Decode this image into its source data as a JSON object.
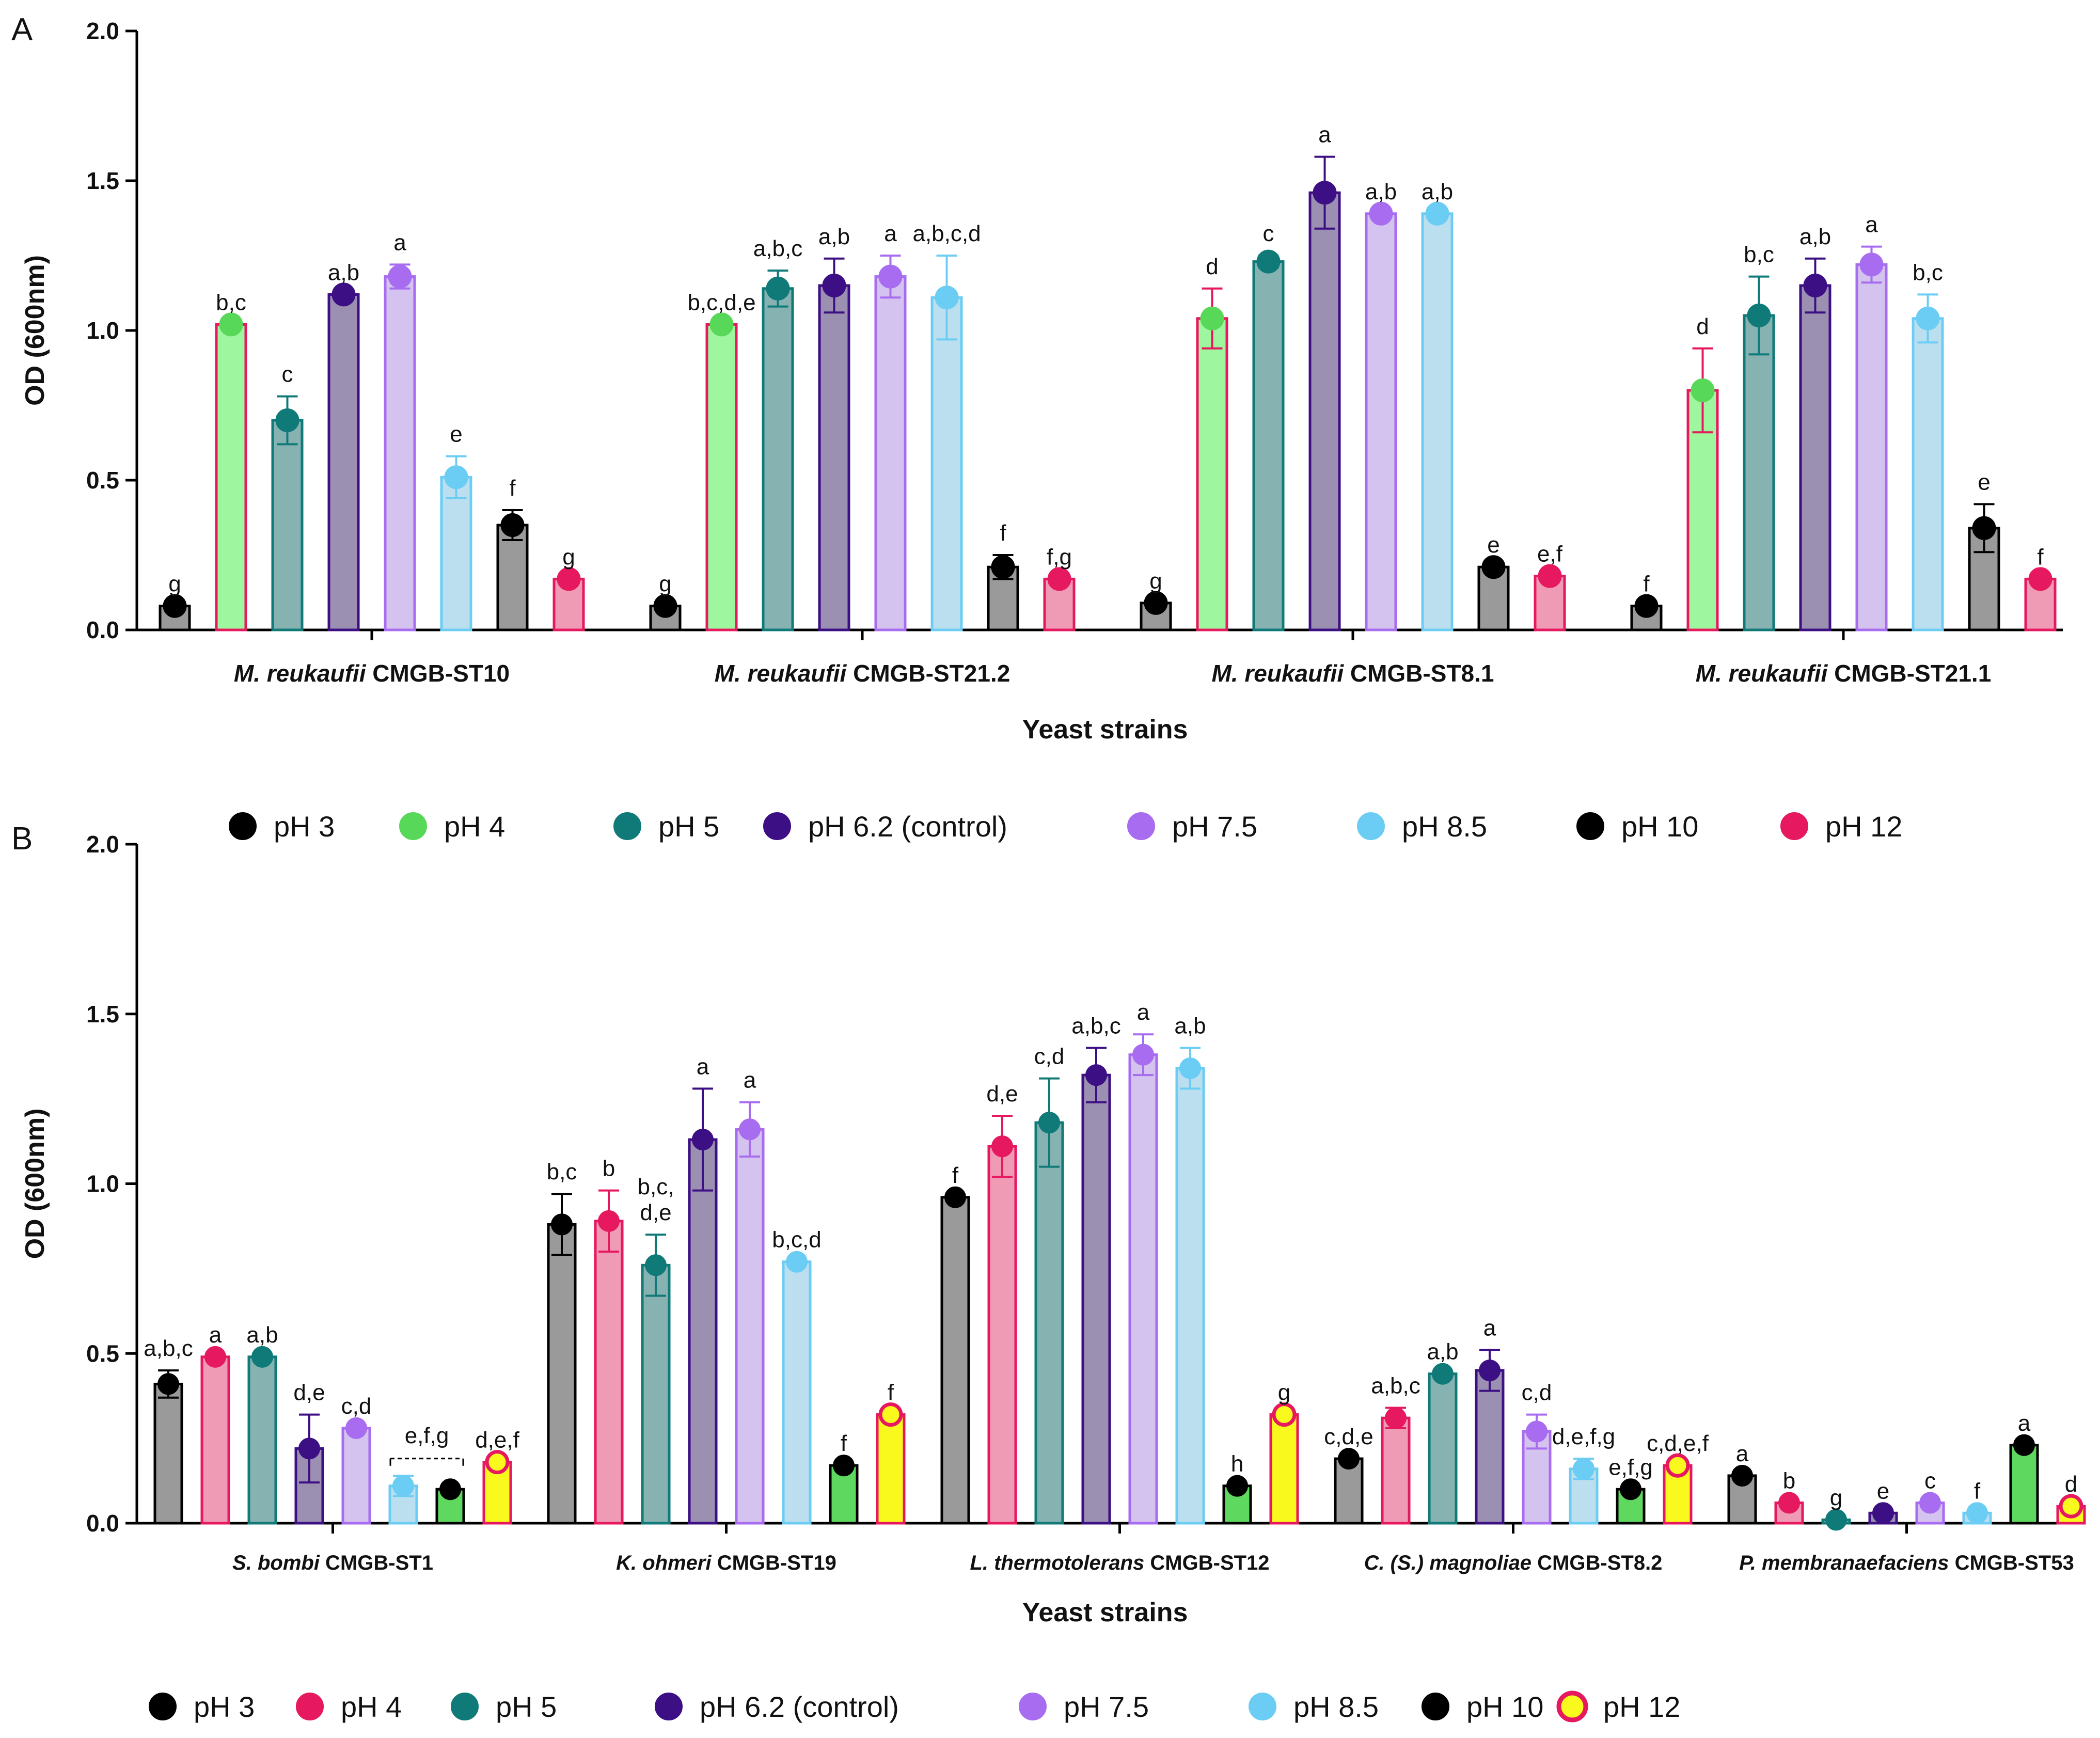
{
  "panel_labels": [
    "A",
    "B"
  ],
  "chart_data": [
    {
      "type": "bar",
      "panel": "A",
      "title": "",
      "xlabel": "Yeast strains",
      "ylabel": "OD (600nm)",
      "ylim": [
        0,
        2.0
      ],
      "yticks": [
        "0.0",
        "0.5",
        "1.0",
        "1.5",
        "2.0"
      ],
      "categories": [
        {
          "italic": "M. reukaufii",
          "strain": " CMGB-ST10"
        },
        {
          "italic": "M. reukaufii",
          "strain": " CMGB-ST21.2"
        },
        {
          "italic": "M. reukaufii",
          "strain": " CMGB-ST8.1"
        },
        {
          "italic": "M. reukaufii",
          "strain": " CMGB-ST21.1"
        }
      ],
      "series": [
        {
          "name": "pH 3",
          "fill": "#9a9a9a",
          "border": "#000000",
          "dot": "#000000",
          "values": [
            0.08,
            0.08,
            0.09,
            0.08
          ],
          "errors": [
            0.01,
            0.01,
            0.01,
            0.01
          ],
          "sig": [
            "g",
            "g",
            "g",
            "f"
          ]
        },
        {
          "name": "pH 4",
          "fill": "#9ef79e",
          "border": "#e6185f",
          "dot": "#58d858",
          "values": [
            1.02,
            1.02,
            1.04,
            0.8
          ],
          "errors": [
            0.01,
            0.01,
            0.1,
            0.14
          ],
          "sig": [
            "b,c",
            "b,c,d,e",
            "d",
            "d"
          ]
        },
        {
          "name": "pH 5",
          "fill": "#86b2b2",
          "border": "#0f7a78",
          "dot": "#0f7a78",
          "values": [
            0.7,
            1.14,
            1.23,
            1.05
          ],
          "errors": [
            0.08,
            0.06,
            0.02,
            0.13
          ],
          "sig": [
            "c",
            "a,b,c",
            "c",
            "b,c"
          ]
        },
        {
          "name": "pH 6.2 (control)",
          "fill": "#9b8fb2",
          "border": "#3d0f84",
          "dot": "#3d0f84",
          "values": [
            1.12,
            1.15,
            1.46,
            1.15
          ],
          "errors": [
            0.01,
            0.09,
            0.12,
            0.09
          ],
          "sig": [
            "a,b",
            "a,b",
            "a",
            "a,b"
          ]
        },
        {
          "name": "pH 7.5",
          "fill": "#d4c3ee",
          "border": "#a86cf0",
          "dot": "#a86cf0",
          "values": [
            1.18,
            1.18,
            1.39,
            1.22
          ],
          "errors": [
            0.04,
            0.07,
            0.01,
            0.06
          ],
          "sig": [
            "a",
            "a",
            "a,b",
            "a"
          ]
        },
        {
          "name": "pH 8.5",
          "fill": "#bcdff0",
          "border": "#6ccdf4",
          "dot": "#6ccdf4",
          "values": [
            0.51,
            1.11,
            1.39,
            1.04
          ],
          "errors": [
            0.07,
            0.14,
            0.01,
            0.08
          ],
          "sig": [
            "e",
            "a,b,c,d",
            "a,b",
            "b,c"
          ]
        },
        {
          "name": "pH 10",
          "fill": "#9a9a9a",
          "border": "#000000",
          "dot": "#000000",
          "values": [
            0.35,
            0.21,
            0.21,
            0.34
          ],
          "errors": [
            0.05,
            0.04,
            0.01,
            0.08
          ],
          "sig": [
            "f",
            "f",
            "e",
            "e"
          ]
        },
        {
          "name": "pH 12",
          "fill": "#f09bb6",
          "border": "#e6185f",
          "dot": "#e6185f",
          "values": [
            0.17,
            0.17,
            0.18,
            0.17
          ],
          "errors": [
            0.01,
            0.01,
            0.01,
            0.01
          ],
          "sig": [
            "g",
            "f,g",
            "e,f",
            "f"
          ]
        }
      ],
      "legend": {
        "placement": "below-chart",
        "entries": [
          {
            "label": "pH 3",
            "dot": "#000000",
            "ring": "#000000"
          },
          {
            "label": "pH 4",
            "dot": "#58d858",
            "ring": "#58d858"
          },
          {
            "label": "pH 5",
            "dot": "#0f7a78",
            "ring": "#0f7a78"
          },
          {
            "label": "pH 6.2 (control)",
            "dot": "#3d0f84",
            "ring": "#3d0f84"
          },
          {
            "label": "pH 7.5",
            "dot": "#a86cf0",
            "ring": "#a86cf0"
          },
          {
            "label": "pH 8.5",
            "dot": "#6ccdf4",
            "ring": "#6ccdf4"
          },
          {
            "label": "pH 10",
            "dot": "#000000",
            "ring": "#000000"
          },
          {
            "label": "pH 12",
            "dot": "#e6185f",
            "ring": "#e6185f"
          }
        ]
      }
    },
    {
      "type": "bar",
      "panel": "B",
      "title": "",
      "xlabel": "Yeast strains",
      "ylabel": "OD (600nm)",
      "ylim": [
        0,
        2.0
      ],
      "yticks": [
        "0.0",
        "0.5",
        "1.0",
        "1.5",
        "2.0"
      ],
      "categories": [
        {
          "italic": "S. bombi",
          "strain": " CMGB-ST1"
        },
        {
          "italic": "K. ohmeri",
          "strain": " CMGB-ST19"
        },
        {
          "italic": "L. thermotolerans",
          "strain": " CMGB-ST12"
        },
        {
          "italic": "C. (S.) magnoliae",
          "strain": " CMGB-ST8.2"
        },
        {
          "italic": "P. membranaefaciens",
          "strain": " CMGB-ST53"
        }
      ],
      "series": [
        {
          "name": "pH 3",
          "fill": "#9a9a9a",
          "border": "#000000",
          "dot": "#000000",
          "values": [
            0.41,
            0.88,
            0.96,
            0.19,
            0.14
          ],
          "errors": [
            0.04,
            0.09,
            0.01,
            0.01,
            0.01
          ],
          "sig": [
            "a,b,c",
            "b,c",
            "f",
            "c,d,e",
            "a"
          ]
        },
        {
          "name": "pH 4",
          "fill": "#f09bb6",
          "border": "#e6185f",
          "dot": "#e6185f",
          "values": [
            0.49,
            0.89,
            1.11,
            0.31,
            0.06
          ],
          "errors": [
            0.01,
            0.09,
            0.09,
            0.03,
            0.01
          ],
          "sig": [
            "a",
            "b",
            "d,e",
            "a,b,c",
            "b"
          ]
        },
        {
          "name": "pH 5",
          "fill": "#86b2b2",
          "border": "#0f7a78",
          "dot": "#0f7a78",
          "values": [
            0.49,
            0.76,
            1.18,
            0.44,
            0.01
          ],
          "errors": [
            0.01,
            0.09,
            0.13,
            0.01,
            0.01
          ],
          "sig": [
            "a,b",
            "b,c,\nd,e",
            "c,d",
            "a,b",
            "g"
          ]
        },
        {
          "name": "pH 6.2 (control)",
          "fill": "#9b8fb2",
          "border": "#3d0f84",
          "dot": "#3d0f84",
          "values": [
            0.22,
            1.13,
            1.32,
            0.45,
            0.03
          ],
          "errors": [
            0.1,
            0.15,
            0.08,
            0.06,
            0.01
          ],
          "sig": [
            "d,e",
            "a",
            "a,b,c",
            "a",
            "e"
          ]
        },
        {
          "name": "pH 7.5",
          "fill": "#d4c3ee",
          "border": "#a86cf0",
          "dot": "#a86cf0",
          "values": [
            0.28,
            1.16,
            1.38,
            0.27,
            0.06
          ],
          "errors": [
            0.01,
            0.08,
            0.06,
            0.05,
            0.01
          ],
          "sig": [
            "c,d",
            "a",
            "a",
            "c,d",
            "c"
          ]
        },
        {
          "name": "pH 8.5",
          "fill": "#bcdff0",
          "border": "#6ccdf4",
          "dot": "#6ccdf4",
          "values": [
            0.11,
            0.77,
            1.34,
            0.16,
            0.03
          ],
          "errors": [
            0.03,
            0.01,
            0.06,
            0.03,
            0.01
          ],
          "sig": [
            "e,f,g",
            "b,c,d",
            "a,b",
            "d,e,f,g",
            "f"
          ]
        },
        {
          "name": "pH 10",
          "fill": "#5fd85f",
          "border": "#000000",
          "dot": "#000000",
          "values": [
            0.1,
            0.17,
            0.11,
            0.1,
            0.23
          ],
          "errors": [
            0.01,
            0.01,
            0.01,
            0.01,
            0.01
          ],
          "sig": [
            "",
            "f",
            "h",
            "e,f,g",
            "a"
          ]
        },
        {
          "name": "pH 12",
          "fill": "#f9f91e",
          "border": "#e6185f",
          "dot": "#f9f91e",
          "values": [
            0.18,
            0.32,
            0.32,
            0.17,
            0.05
          ],
          "errors": [
            0.01,
            0.01,
            0.01,
            0.01,
            0.01
          ],
          "sig": [
            "d,e,f",
            "f",
            "g",
            "c,d,e,f",
            "d"
          ]
        }
      ],
      "legend": {
        "placement": "below-chart",
        "entries": [
          {
            "label": "pH 3",
            "dot": "#000000",
            "ring": "#000000"
          },
          {
            "label": "pH 4",
            "dot": "#e6185f",
            "ring": "#e6185f"
          },
          {
            "label": "pH 5",
            "dot": "#0f7a78",
            "ring": "#0f7a78"
          },
          {
            "label": "pH 6.2 (control)",
            "dot": "#3d0f84",
            "ring": "#3d0f84"
          },
          {
            "label": "pH 7.5",
            "dot": "#a86cf0",
            "ring": "#a86cf0"
          },
          {
            "label": "pH 8.5",
            "dot": "#6ccdf4",
            "ring": "#6ccdf4"
          },
          {
            "label": "pH 10",
            "dot": "#000000",
            "ring": "#000000"
          },
          {
            "label": "pH 12",
            "dot": "#f9f91e",
            "ring": "#e6185f"
          }
        ]
      }
    }
  ]
}
